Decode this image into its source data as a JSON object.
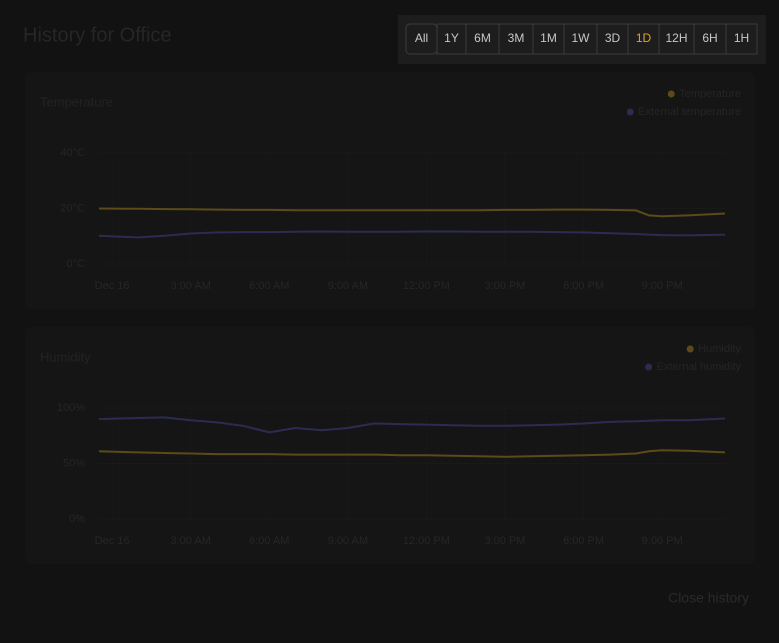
{
  "header": {
    "title": "History for Office"
  },
  "ranges": {
    "buttons": [
      "All",
      "1Y",
      "6M",
      "3M",
      "1M",
      "1W",
      "3D",
      "1D",
      "12H",
      "6H",
      "1H"
    ],
    "selected": "1D"
  },
  "chart_data": [
    {
      "type": "line",
      "title": "Temperature",
      "x": [
        -0.5,
        1,
        2,
        3,
        4,
        5,
        6,
        7,
        8,
        9,
        10,
        11,
        12,
        13,
        14,
        15,
        16,
        17,
        18,
        19,
        20,
        20.5,
        21,
        22,
        23.4
      ],
      "xlim": [
        -0.5,
        23.4
      ],
      "xticks": [
        {
          "value": 0,
          "label": "Dec 16"
        },
        {
          "value": 3,
          "label": "3:00 AM"
        },
        {
          "value": 6,
          "label": "6:00 AM"
        },
        {
          "value": 9,
          "label": "9:00 AM"
        },
        {
          "value": 12,
          "label": "12:00 PM"
        },
        {
          "value": 15,
          "label": "3:00 PM"
        },
        {
          "value": 18,
          "label": "6:00 PM"
        },
        {
          "value": 21,
          "label": "9:00 PM"
        }
      ],
      "ylim": [
        0,
        40
      ],
      "yticks": [
        {
          "value": 0,
          "label": "0°C"
        },
        {
          "value": 20,
          "label": "20°C"
        },
        {
          "value": 40,
          "label": "40°C"
        }
      ],
      "grid": true,
      "series": [
        {
          "name": "Temperature",
          "color": "#5c4a18",
          "values": [
            20,
            19.9,
            19.8,
            19.7,
            19.6,
            19.5,
            19.5,
            19.4,
            19.4,
            19.4,
            19.4,
            19.4,
            19.4,
            19.4,
            19.4,
            19.5,
            19.5,
            19.6,
            19.6,
            19.5,
            19.3,
            17.5,
            17.2,
            17.5,
            18.2
          ]
        },
        {
          "name": "External temperature",
          "color": "#2c2c52",
          "values": [
            10.2,
            9.6,
            10.2,
            11,
            11.4,
            11.5,
            11.5,
            11.6,
            11.7,
            11.6,
            11.6,
            11.6,
            11.7,
            11.7,
            11.6,
            11.6,
            11.6,
            11.5,
            11.4,
            11.1,
            10.8,
            10.6,
            10.4,
            10.3,
            10.6
          ]
        }
      ]
    },
    {
      "type": "line",
      "title": "Humidity",
      "x": [
        -0.5,
        1,
        2,
        3,
        4,
        5,
        6,
        7,
        8,
        9,
        10,
        11,
        12,
        13,
        14,
        15,
        16,
        17,
        18,
        19,
        20,
        20.5,
        21,
        22,
        23.4
      ],
      "xlim": [
        -0.5,
        23.4
      ],
      "xticks": [
        {
          "value": 0,
          "label": "Dec 16"
        },
        {
          "value": 3,
          "label": "3:00 AM"
        },
        {
          "value": 6,
          "label": "6:00 AM"
        },
        {
          "value": 9,
          "label": "9:00 AM"
        },
        {
          "value": 12,
          "label": "12:00 PM"
        },
        {
          "value": 15,
          "label": "3:00 PM"
        },
        {
          "value": 18,
          "label": "6:00 PM"
        },
        {
          "value": 21,
          "label": "9:00 PM"
        }
      ],
      "ylim": [
        0,
        100
      ],
      "yticks": [
        {
          "value": 0,
          "label": "0%"
        },
        {
          "value": 50,
          "label": "50%"
        },
        {
          "value": 100,
          "label": "100%"
        }
      ],
      "grid": true,
      "series": [
        {
          "name": "Humidity",
          "color": "#5c4a18",
          "values": [
            61,
            60,
            59.5,
            59,
            58.5,
            58.5,
            58.5,
            58,
            58,
            58,
            58,
            57.5,
            57.5,
            57,
            56.5,
            56,
            56.5,
            57,
            57.5,
            58,
            59,
            61,
            62,
            61.5,
            60
          ]
        },
        {
          "name": "External humidity",
          "color": "#2c2c52",
          "values": [
            90,
            91,
            91.5,
            89,
            87,
            84,
            78,
            82,
            80,
            82,
            86,
            85.5,
            85,
            84.5,
            84,
            84,
            84.5,
            85,
            86,
            87.5,
            88,
            88.5,
            89,
            89,
            90.5
          ]
        }
      ]
    }
  ],
  "footer": {
    "close": "Close history"
  }
}
